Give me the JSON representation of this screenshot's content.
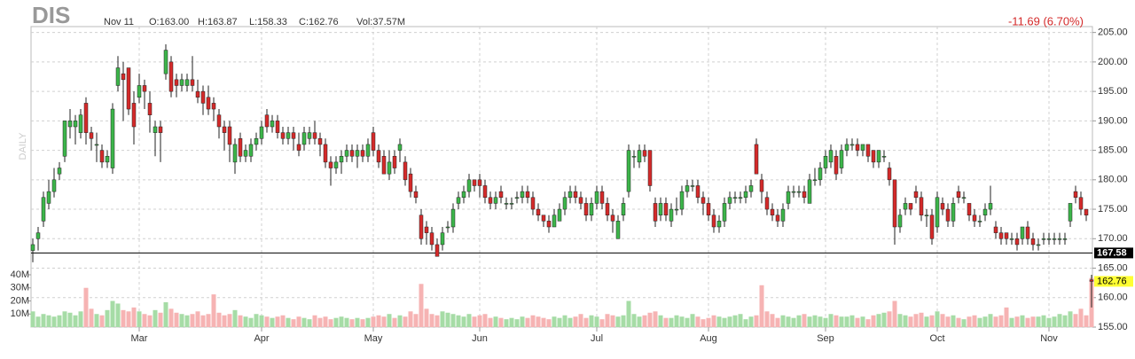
{
  "chart_data": {
    "type": "candlestick",
    "symbol": "DIS",
    "date": "Nov 11",
    "ohlc_labels": [
      "O:163.00",
      "H:163.87",
      "L:158.33",
      "C:162.76",
      "Vol:37.57M"
    ],
    "change": "-11.69 (6.70%)",
    "period": "DAILY",
    "up_color": "#3cb54a",
    "down_color": "#d42a2a",
    "volume_up_color": "#a6dca6",
    "volume_down_color": "#f6b3b3",
    "open": [
      168,
      170,
      173,
      176,
      178,
      181,
      184,
      189,
      189,
      188,
      193,
      188,
      186,
      185,
      183,
      182,
      196,
      198,
      199,
      193,
      194,
      196,
      193,
      188,
      189,
      198,
      200,
      197,
      196,
      196,
      197,
      195,
      195,
      194,
      193,
      191,
      189,
      189,
      183,
      187,
      184,
      184,
      186,
      187,
      191,
      189,
      190,
      188,
      187,
      188,
      186,
      186,
      187,
      188,
      187,
      186,
      183,
      182,
      183,
      184,
      185,
      184,
      185,
      184,
      188,
      185,
      184,
      181,
      184,
      185,
      183,
      181,
      178,
      174,
      172,
      171,
      169,
      169,
      172,
      172,
      176,
      177,
      178,
      180,
      180,
      179,
      177,
      176,
      178,
      176,
      176,
      177,
      177,
      178,
      177,
      175,
      174,
      173,
      172,
      173,
      175,
      177,
      178,
      177,
      176,
      174,
      176,
      178,
      176,
      174,
      170,
      174,
      178,
      184,
      183,
      185,
      185,
      176,
      174,
      176,
      173,
      175,
      175,
      178,
      179,
      179,
      177,
      176,
      174,
      172,
      173,
      176,
      177,
      177,
      177,
      178,
      186,
      180,
      177,
      175,
      174,
      173,
      176,
      178,
      178,
      178,
      176,
      180,
      180,
      182,
      183,
      184,
      182,
      185,
      186,
      186,
      185,
      186,
      185,
      183,
      184,
      182,
      180,
      172,
      175,
      176,
      178,
      177,
      174,
      174,
      172,
      176,
      175,
      173,
      178,
      177,
      176,
      174,
      173,
      174,
      175,
      172,
      171,
      171,
      170,
      170,
      170,
      172,
      170,
      169,
      170,
      170,
      170,
      170,
      170,
      173,
      178,
      177,
      175,
      163
    ],
    "high": [
      170,
      172,
      178,
      180,
      182,
      183,
      190,
      192,
      191,
      192,
      194,
      189,
      188,
      186,
      185,
      193,
      201,
      200,
      199,
      195,
      198,
      197,
      195,
      190,
      190,
      203,
      201,
      198,
      198,
      198,
      201,
      197,
      196,
      196,
      194,
      192,
      190,
      190,
      187,
      188,
      186,
      187,
      188,
      190,
      192,
      191,
      191,
      189,
      189,
      189,
      188,
      189,
      189,
      190,
      188,
      187,
      184,
      184,
      185,
      186,
      186,
      186,
      186,
      187,
      189,
      186,
      185,
      185,
      185,
      187,
      184,
      182,
      179,
      175,
      173,
      172,
      170,
      172,
      173,
      176,
      178,
      179,
      181,
      180,
      181,
      180,
      178,
      178,
      179,
      177,
      177,
      178,
      179,
      179,
      178,
      176,
      174,
      174,
      175,
      176,
      178,
      179,
      179,
      178,
      177,
      177,
      179,
      179,
      177,
      175,
      174,
      177,
      186,
      185,
      186,
      186,
      185,
      177,
      177,
      177,
      176,
      177,
      179,
      180,
      180,
      180,
      178,
      177,
      175,
      174,
      177,
      178,
      178,
      178,
      179,
      180,
      187,
      181,
      178,
      176,
      175,
      176,
      179,
      179,
      179,
      179,
      181,
      182,
      183,
      185,
      186,
      185,
      186,
      187,
      187,
      187,
      186,
      186,
      185,
      185,
      185,
      183,
      180,
      175,
      177,
      176,
      179,
      178,
      175,
      175,
      178,
      177,
      176,
      177,
      179,
      178,
      176,
      175,
      174,
      176,
      179,
      173,
      172,
      171,
      171,
      171,
      172,
      173,
      171,
      170,
      171,
      171,
      171,
      171,
      171,
      176,
      179,
      178,
      175,
      163.87
    ],
    "low": [
      166,
      168,
      172,
      175,
      177,
      180,
      183,
      187,
      186,
      187,
      186,
      185,
      183,
      182,
      182,
      181,
      195,
      190,
      191,
      186,
      193,
      192,
      188,
      184,
      183,
      197,
      194,
      194,
      195,
      195,
      195,
      193,
      191,
      191,
      190,
      187,
      185,
      183,
      181,
      183,
      183,
      183,
      185,
      186,
      188,
      188,
      187,
      186,
      186,
      185,
      184,
      185,
      186,
      186,
      184,
      182,
      179,
      181,
      181,
      183,
      183,
      182,
      183,
      183,
      184,
      182,
      181,
      180,
      181,
      183,
      179,
      177,
      176,
      169,
      169,
      168,
      167,
      168,
      171,
      171,
      175,
      176,
      177,
      178,
      177,
      176,
      175,
      175,
      176,
      175,
      175,
      176,
      176,
      176,
      174,
      173,
      172,
      171,
      172,
      173,
      174,
      176,
      176,
      175,
      173,
      173,
      175,
      175,
      173,
      171,
      170,
      173,
      177,
      182,
      182,
      183,
      178,
      172,
      173,
      173,
      172,
      174,
      174,
      177,
      178,
      176,
      174,
      173,
      171,
      171,
      172,
      175,
      176,
      176,
      176,
      177,
      181,
      176,
      174,
      173,
      172,
      172,
      175,
      177,
      177,
      176,
      176,
      179,
      179,
      181,
      182,
      180,
      181,
      184,
      185,
      184,
      184,
      183,
      182,
      182,
      183,
      179,
      169,
      171,
      174,
      174,
      176,
      173,
      172,
      169,
      171,
      174,
      172,
      172,
      176,
      176,
      173,
      172,
      172,
      173,
      174,
      170,
      169,
      169,
      169,
      168,
      169,
      169,
      168,
      168,
      169,
      169,
      169,
      169,
      169,
      172,
      176,
      174,
      173,
      158.33
    ],
    "close": [
      169,
      171,
      177,
      178,
      180,
      182,
      190,
      190,
      190,
      191,
      188,
      187,
      186,
      183,
      184,
      192,
      199,
      197,
      192,
      189,
      196,
      195,
      191,
      189,
      188,
      202,
      195,
      196,
      197,
      197,
      196,
      194,
      193,
      192,
      192,
      189,
      188,
      186,
      186,
      184,
      185,
      186,
      187,
      189,
      189,
      190,
      188,
      187,
      188,
      187,
      185,
      188,
      188,
      187,
      186,
      183,
      182,
      183,
      184,
      185,
      184,
      185,
      184,
      186,
      185,
      183,
      181,
      183,
      182,
      186,
      180,
      178,
      177,
      170,
      171,
      169,
      167,
      171,
      172,
      175,
      177,
      178,
      180,
      179,
      179,
      177,
      176,
      177,
      177,
      176,
      176,
      177,
      178,
      177,
      175,
      174,
      173,
      172,
      174,
      175,
      177,
      178,
      177,
      176,
      174,
      176,
      178,
      176,
      174,
      173,
      173,
      176,
      185,
      184,
      185,
      184,
      179,
      173,
      176,
      174,
      175,
      175,
      178,
      179,
      179,
      177,
      176,
      174,
      172,
      173,
      176,
      177,
      177,
      177,
      178,
      179,
      181,
      178,
      175,
      174,
      173,
      175,
      178,
      178,
      178,
      177,
      180,
      180,
      182,
      184,
      185,
      181,
      185,
      186,
      186,
      185,
      186,
      184,
      183,
      185,
      184,
      180,
      172,
      174,
      176,
      175,
      177,
      174,
      174,
      170,
      177,
      175,
      173,
      176,
      177,
      177,
      174,
      173,
      173,
      175,
      176,
      171,
      170,
      170,
      170,
      169,
      172,
      170,
      169,
      169,
      170,
      170,
      170,
      170,
      170,
      176,
      177,
      175,
      174,
      162.76
    ],
    "volume": [
      12,
      8,
      10,
      9,
      8,
      9,
      12,
      11,
      9,
      12,
      30,
      14,
      10,
      9,
      13,
      20,
      18,
      13,
      12,
      15,
      12,
      10,
      9,
      13,
      11,
      19,
      14,
      11,
      10,
      9,
      10,
      12,
      9,
      10,
      25,
      11,
      9,
      10,
      13,
      9,
      8,
      7,
      10,
      9,
      8,
      7,
      8,
      9,
      7,
      6,
      8,
      7,
      6,
      9,
      7,
      8,
      6,
      7,
      8,
      7,
      6,
      7,
      6,
      7,
      8,
      9,
      8,
      10,
      7,
      9,
      8,
      12,
      10,
      33,
      14,
      10,
      9,
      12,
      11,
      10,
      9,
      8,
      10,
      8,
      9,
      10,
      7,
      8,
      7,
      6,
      7,
      6,
      8,
      7,
      9,
      8,
      7,
      6,
      8,
      7,
      9,
      7,
      8,
      10,
      7,
      9,
      8,
      6,
      10,
      9,
      8,
      9,
      20,
      10,
      8,
      9,
      11,
      12,
      9,
      7,
      7,
      9,
      8,
      7,
      10,
      8,
      6,
      7,
      9,
      8,
      7,
      8,
      9,
      10,
      6,
      8,
      9,
      32,
      12,
      10,
      7,
      9,
      8,
      7,
      9,
      10,
      8,
      9,
      8,
      7,
      10,
      9,
      8,
      8,
      9,
      7,
      8,
      6,
      9,
      10,
      11,
      12,
      20,
      10,
      9,
      8,
      10,
      11,
      8,
      9,
      12,
      10,
      8,
      9,
      7,
      6,
      8,
      9,
      7,
      8,
      10,
      8,
      9,
      15,
      7,
      8,
      9,
      7,
      8,
      8,
      9,
      7,
      8,
      10,
      9,
      12,
      10,
      14,
      9,
      37.57
    ],
    "xticks": [
      {
        "value": 20,
        "label": "Mar"
      },
      {
        "value": 43,
        "label": "Apr"
      },
      {
        "value": 64,
        "label": "May"
      },
      {
        "value": 84,
        "label": "Jun"
      },
      {
        "value": 106,
        "label": "Jul"
      },
      {
        "value": 127,
        "label": "Aug"
      },
      {
        "value": 149,
        "label": "Sep"
      },
      {
        "value": 170,
        "label": "Oct"
      },
      {
        "value": 191,
        "label": "Nov"
      }
    ],
    "ylim": [
      155,
      206
    ],
    "yticks": [
      {
        "value": 155,
        "label": "155.00"
      },
      {
        "value": 160,
        "label": "160.00"
      },
      {
        "value": 165,
        "label": "165.00"
      },
      {
        "value": 170,
        "label": "170.00"
      },
      {
        "value": 175,
        "label": "175.00"
      },
      {
        "value": 180,
        "label": "180.00"
      },
      {
        "value": 185,
        "label": "185.00"
      },
      {
        "value": 190,
        "label": "190.00"
      },
      {
        "value": 195,
        "label": "195.00"
      },
      {
        "value": 200,
        "label": "200.00"
      },
      {
        "value": 205,
        "label": "205.00"
      }
    ],
    "volume_lim": [
      0,
      45
    ],
    "volume_ticks": [
      {
        "value": 10,
        "label": "10M"
      },
      {
        "value": 20,
        "label": "20M"
      },
      {
        "value": 30,
        "label": "30M"
      },
      {
        "value": 40,
        "label": "40M"
      }
    ],
    "hline": 167.58,
    "grid": true
  }
}
